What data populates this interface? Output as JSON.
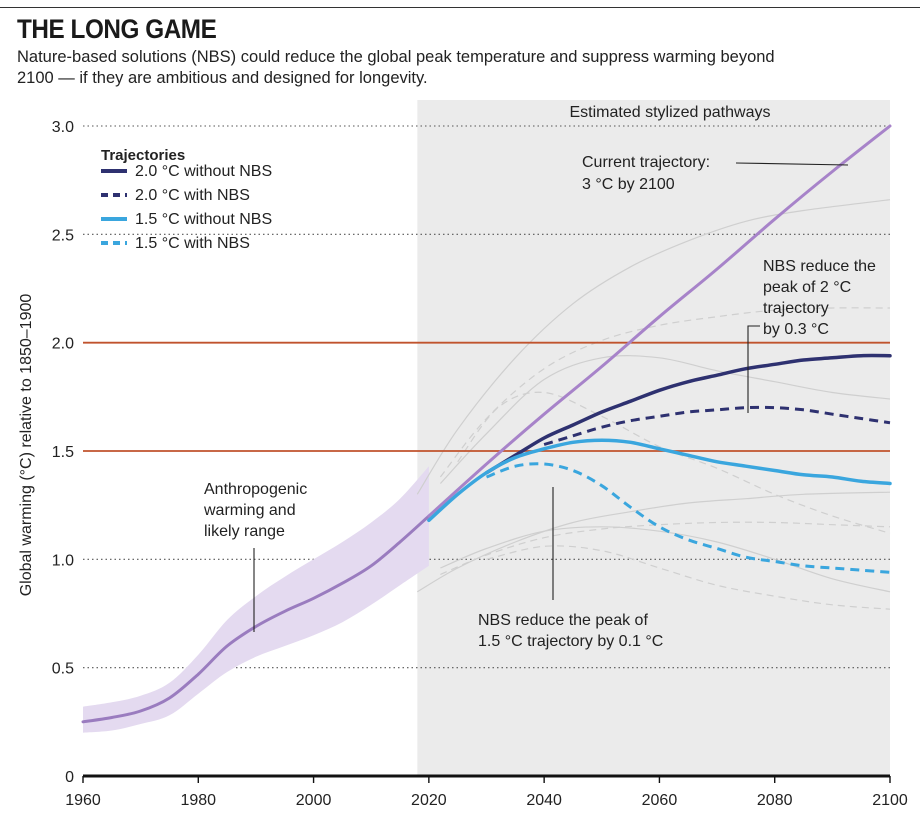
{
  "header": {
    "title": "THE LONG GAME",
    "subtitle": "Nature-based solutions (NBS) could reduce the global peak temperature and suppress warming beyond 2100 — if they are ambitious and designed for longevity."
  },
  "colors": {
    "historical": "#9a7cbf",
    "range_band": "#e4daf0",
    "current": "#a783c9",
    "two_c": "#2e3170",
    "one_five": "#3aa6de",
    "threshold_lines": "#c0532d",
    "shading": "#ebebeb",
    "background_lines": "#cfcfcf"
  },
  "chart_data": {
    "type": "line",
    "title": "THE LONG GAME",
    "ylabel": "Global warming (°C) relative to 1850–1900",
    "xlim": [
      1960,
      2100
    ],
    "ylim": [
      0,
      3.0
    ],
    "x_ticks": [
      1960,
      1980,
      2000,
      2020,
      2040,
      2060,
      2080,
      2100
    ],
    "y_ticks": [
      0,
      0.5,
      1.0,
      1.5,
      2.0,
      2.5,
      3.0
    ],
    "y_tick_labels": [
      "0",
      "0.5",
      "1.0",
      "1.5",
      "2.0",
      "2.5",
      "3.0"
    ],
    "threshold_lines": [
      1.5,
      2.0
    ],
    "shaded_region": {
      "x_start": 2018,
      "x_end": 2100,
      "label": "Estimated stylized pathways"
    },
    "legend": {
      "title": "Trajectories",
      "position": "top-left",
      "items": [
        {
          "label": "2.0 °C without NBS",
          "color": "#2e3170",
          "dashed": false
        },
        {
          "label": "2.0 °C with NBS",
          "color": "#2e3170",
          "dashed": true
        },
        {
          "label": "1.5 °C without NBS",
          "color": "#3aa6de",
          "dashed": false
        },
        {
          "label": "1.5 °C with NBS",
          "color": "#3aa6de",
          "dashed": true
        }
      ]
    },
    "band": {
      "x": [
        1960,
        1965,
        1970,
        1975,
        1980,
        1985,
        1990,
        1995,
        2000,
        2005,
        2010,
        2015,
        2020
      ],
      "upper": [
        0.32,
        0.34,
        0.37,
        0.43,
        0.56,
        0.72,
        0.83,
        0.92,
        1.0,
        1.08,
        1.17,
        1.28,
        1.43
      ],
      "lower": [
        0.2,
        0.21,
        0.24,
        0.28,
        0.38,
        0.48,
        0.55,
        0.6,
        0.65,
        0.71,
        0.79,
        0.88,
        0.97
      ]
    },
    "series": [
      {
        "key": "historical",
        "color": "#9a7cbf",
        "dashed": false,
        "width": 3,
        "x": [
          1960,
          1965,
          1970,
          1975,
          1980,
          1985,
          1990,
          1995,
          2000,
          2005,
          2010,
          2015,
          2020
        ],
        "y": [
          0.25,
          0.27,
          0.3,
          0.36,
          0.47,
          0.6,
          0.69,
          0.76,
          0.82,
          0.89,
          0.97,
          1.08,
          1.2
        ]
      },
      {
        "key": "current",
        "color": "#a783c9",
        "dashed": false,
        "width": 3,
        "x": [
          2020,
          2030,
          2040,
          2050,
          2060,
          2070,
          2080,
          2090,
          2100
        ],
        "y": [
          1.2,
          1.44,
          1.67,
          1.89,
          2.12,
          2.34,
          2.57,
          2.79,
          3.0
        ]
      },
      {
        "key": "two_c_without",
        "color": "#2e3170",
        "dashed": false,
        "width": 3.5,
        "x": [
          2030,
          2035,
          2040,
          2045,
          2050,
          2055,
          2060,
          2065,
          2070,
          2075,
          2080,
          2085,
          2090,
          2095,
          2100
        ],
        "y": [
          1.4,
          1.48,
          1.56,
          1.62,
          1.68,
          1.73,
          1.78,
          1.82,
          1.85,
          1.88,
          1.9,
          1.92,
          1.93,
          1.94,
          1.94
        ]
      },
      {
        "key": "two_c_with",
        "color": "#2e3170",
        "dashed": true,
        "width": 3,
        "x": [
          2040,
          2045,
          2050,
          2055,
          2060,
          2065,
          2070,
          2075,
          2080,
          2085,
          2090,
          2095,
          2100
        ],
        "y": [
          1.53,
          1.57,
          1.61,
          1.64,
          1.66,
          1.68,
          1.69,
          1.7,
          1.7,
          1.69,
          1.67,
          1.65,
          1.63
        ]
      },
      {
        "key": "one_five_without",
        "color": "#3aa6de",
        "dashed": false,
        "width": 3.5,
        "x": [
          2020,
          2025,
          2030,
          2035,
          2040,
          2045,
          2050,
          2055,
          2060,
          2065,
          2070,
          2075,
          2080,
          2085,
          2090,
          2095,
          2100
        ],
        "y": [
          1.18,
          1.3,
          1.4,
          1.47,
          1.51,
          1.54,
          1.55,
          1.54,
          1.51,
          1.48,
          1.45,
          1.43,
          1.41,
          1.39,
          1.38,
          1.36,
          1.35
        ]
      },
      {
        "key": "one_five_with",
        "color": "#3aa6de",
        "dashed": true,
        "width": 3,
        "x": [
          2030,
          2035,
          2040,
          2045,
          2050,
          2055,
          2060,
          2065,
          2070,
          2075,
          2080,
          2085,
          2090,
          2095,
          2100
        ],
        "y": [
          1.38,
          1.43,
          1.44,
          1.41,
          1.34,
          1.24,
          1.15,
          1.09,
          1.05,
          1.01,
          0.99,
          0.97,
          0.96,
          0.95,
          0.94
        ]
      }
    ],
    "background_curves": [
      {
        "dashed": false,
        "x": [
          2018,
          2025,
          2035,
          2045,
          2055,
          2065,
          2075,
          2085,
          2100
        ],
        "y": [
          1.3,
          1.6,
          1.93,
          2.18,
          2.35,
          2.47,
          2.56,
          2.61,
          2.66
        ]
      },
      {
        "dashed": true,
        "x": [
          2022,
          2030,
          2040,
          2050,
          2060,
          2070,
          2080,
          2090,
          2100
        ],
        "y": [
          1.38,
          1.65,
          1.88,
          2.01,
          2.08,
          2.12,
          2.15,
          2.16,
          2.16
        ]
      },
      {
        "dashed": false,
        "x": [
          2022,
          2030,
          2040,
          2050,
          2060,
          2070,
          2080,
          2090,
          2100
        ],
        "y": [
          1.35,
          1.58,
          1.83,
          1.93,
          1.93,
          1.87,
          1.82,
          1.77,
          1.74
        ]
      },
      {
        "dashed": true,
        "x": [
          2025,
          2032,
          2040,
          2050,
          2060,
          2070,
          2080,
          2090,
          2100
        ],
        "y": [
          1.45,
          1.7,
          1.77,
          1.66,
          1.52,
          1.42,
          1.3,
          1.2,
          1.12
        ]
      },
      {
        "dashed": false,
        "x": [
          2018,
          2025,
          2035,
          2045,
          2055,
          2065,
          2075,
          2085,
          2100
        ],
        "y": [
          0.85,
          0.96,
          1.08,
          1.17,
          1.22,
          1.26,
          1.28,
          1.3,
          1.31
        ]
      },
      {
        "dashed": true,
        "x": [
          2022,
          2030,
          2040,
          2050,
          2060,
          2070,
          2080,
          2090,
          2100
        ],
        "y": [
          0.93,
          1.02,
          1.1,
          1.14,
          1.16,
          1.17,
          1.17,
          1.16,
          1.15
        ]
      },
      {
        "dashed": false,
        "x": [
          2022,
          2030,
          2040,
          2050,
          2060,
          2070,
          2080,
          2090,
          2100
        ],
        "y": [
          0.96,
          1.05,
          1.13,
          1.15,
          1.13,
          1.08,
          1.0,
          0.91,
          0.85
        ]
      },
      {
        "dashed": true,
        "x": [
          2030,
          2040,
          2050,
          2060,
          2070,
          2080,
          2090,
          2100
        ],
        "y": [
          1.0,
          1.06,
          1.04,
          0.96,
          0.88,
          0.83,
          0.79,
          0.77
        ]
      }
    ],
    "annotations": {
      "current_trajectory": [
        "Current trajectory:",
        "3 °C by 2100"
      ],
      "nbs_two_c": [
        "NBS reduce the",
        "peak of 2 °C",
        "trajectory",
        "by 0.3 °C"
      ],
      "nbs_one_five": [
        "NBS reduce the peak of",
        "1.5 °C trajectory by 0.1 °C"
      ],
      "anthropogenic": [
        "Anthropogenic",
        "warming and",
        "likely range"
      ]
    }
  }
}
